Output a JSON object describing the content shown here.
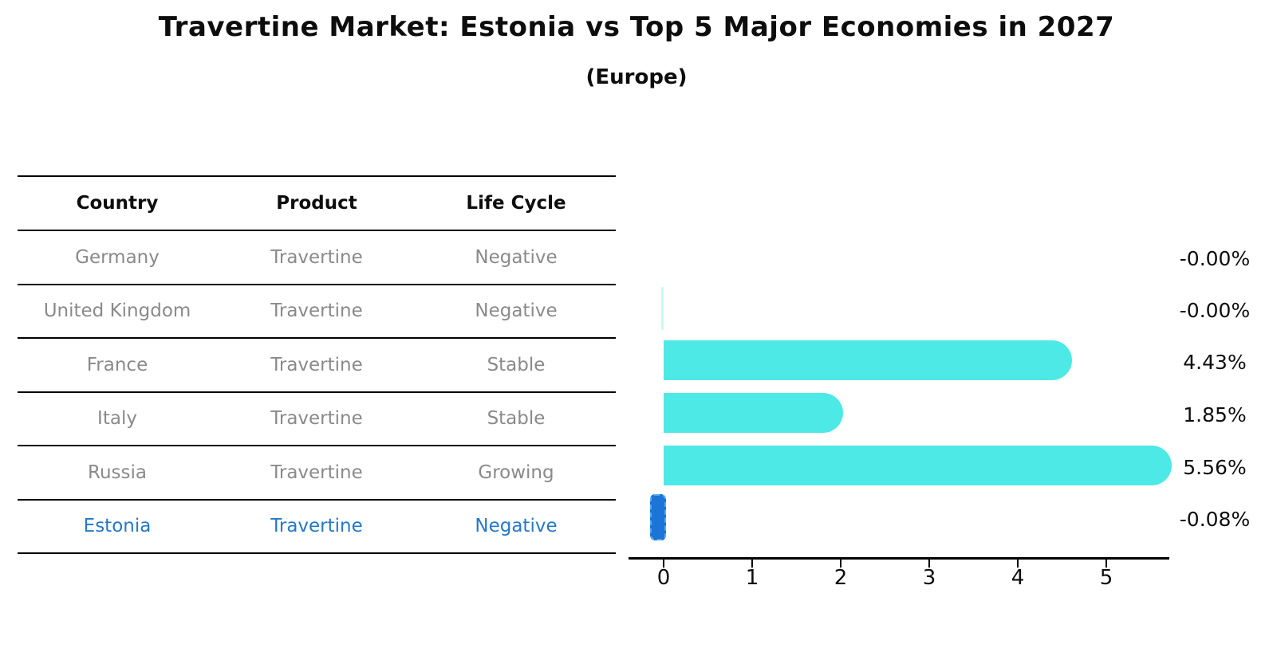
{
  "title": "Travertine Market: Estonia vs Top 5 Major Economies in 2027",
  "subtitle": "(Europe)",
  "table": {
    "headers": [
      "Country",
      "Product",
      "Life Cycle"
    ],
    "rows": [
      {
        "country": "Germany",
        "product": "Travertine",
        "life_cycle": "Negative",
        "highlight": false
      },
      {
        "country": "United Kingdom",
        "product": "Travertine",
        "life_cycle": "Negative",
        "highlight": false
      },
      {
        "country": "France",
        "product": "Travertine",
        "life_cycle": "Stable",
        "highlight": false
      },
      {
        "country": "Italy",
        "product": "Travertine",
        "life_cycle": "Stable",
        "highlight": false
      },
      {
        "country": "Russia",
        "product": "Travertine",
        "life_cycle": "Growing",
        "highlight": false
      },
      {
        "country": "Estonia",
        "product": "Travertine",
        "life_cycle": "Negative",
        "highlight": true
      }
    ]
  },
  "chart_data": {
    "type": "bar",
    "orientation": "horizontal",
    "categories": [
      "Germany",
      "United Kingdom",
      "France",
      "Italy",
      "Russia",
      "Estonia"
    ],
    "values": [
      -0.0,
      -0.0,
      4.43,
      1.85,
      5.56,
      -0.08
    ],
    "value_labels": [
      "-0.00%",
      "-0.00%",
      "4.43%",
      "1.85%",
      "5.56%",
      "-0.08%"
    ],
    "bar_styles": [
      "none",
      "hairline",
      "normal",
      "normal",
      "normal",
      "highlight-negative"
    ],
    "xticks": [
      0,
      1,
      2,
      3,
      4,
      5
    ],
    "xlim": [
      -0.4,
      5.7
    ],
    "xlabel": "",
    "ylabel": "",
    "grid": false,
    "legend": "none",
    "colors": {
      "bar": "#4DE9E6",
      "hairline": "#CDF5F2",
      "highlight_fill": "#1B74D6",
      "highlight_border": "#55A8F5",
      "row_text": "#8A8A8A",
      "highlight_text": "#2478C8",
      "axis": "#000000"
    }
  }
}
